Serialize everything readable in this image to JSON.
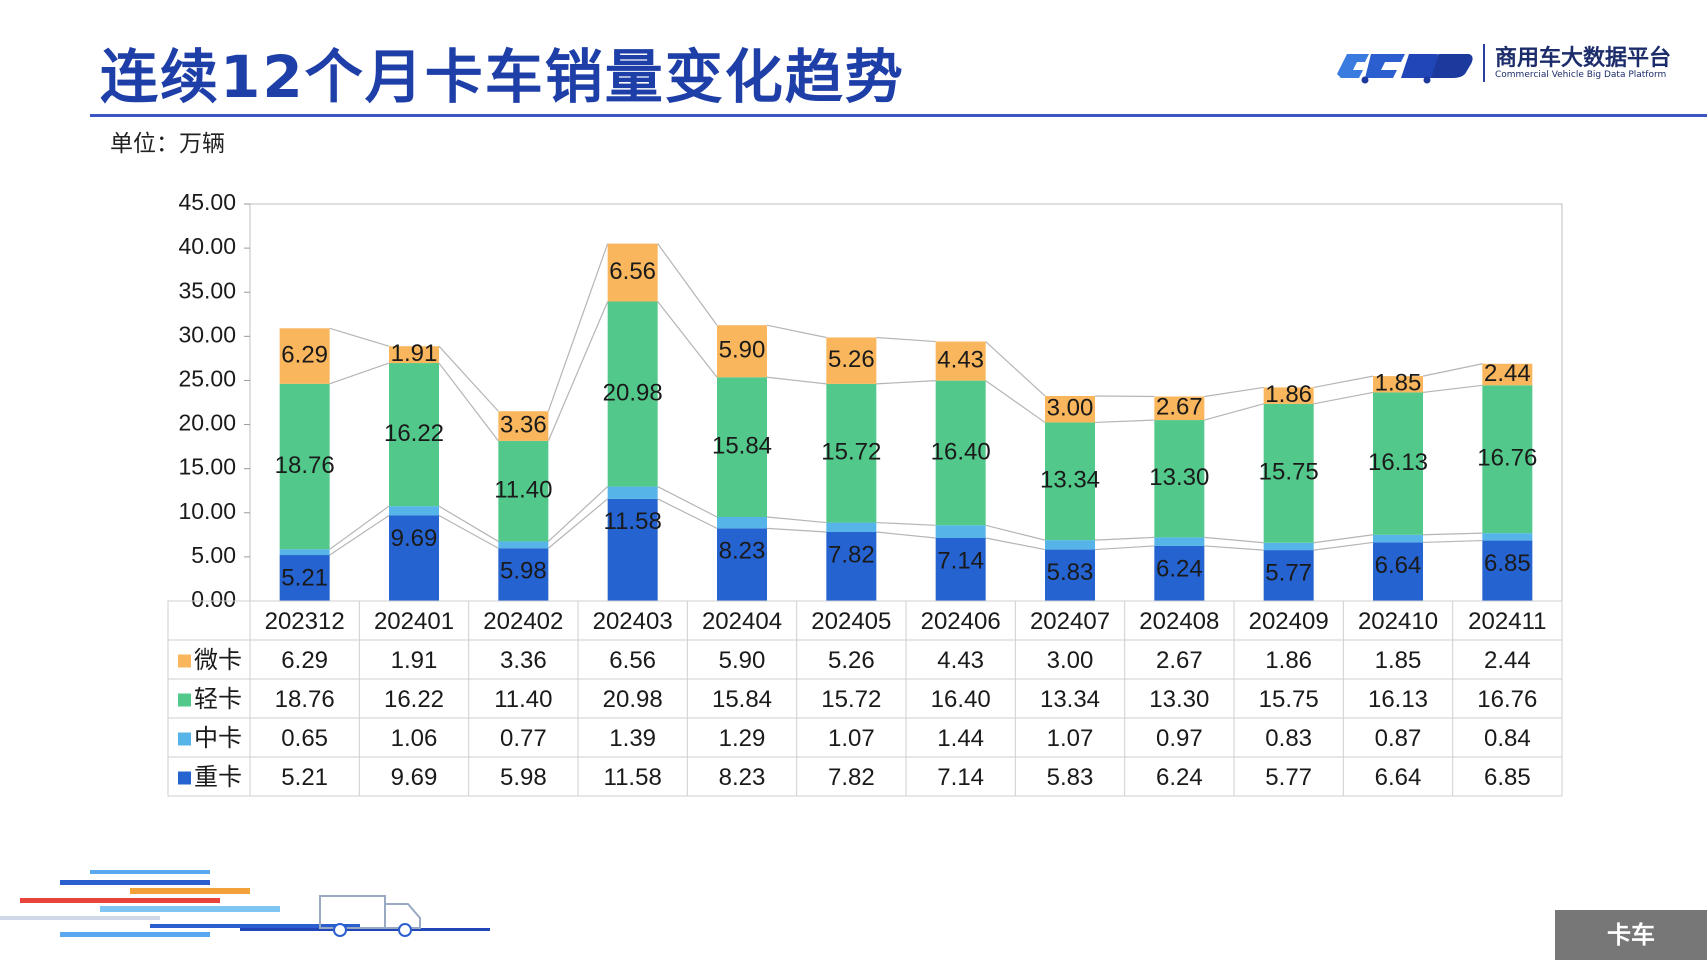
{
  "header": {
    "title": "连续12个月卡车销量变化趋势",
    "unit": "单位：万辆"
  },
  "logo": {
    "name_cn": "商用车大数据平台",
    "name_en": "Commercial Vehicle Big Data Platform"
  },
  "footer": {
    "tag": "卡车"
  },
  "colors": {
    "title": "#1f3fa8",
    "heavy": "#2563d1",
    "medium": "#56b4e8",
    "light": "#52c98b",
    "micro": "#f9b65c",
    "footer_tag": "#777777"
  },
  "chart_data": {
    "type": "bar",
    "stacked": true,
    "categories": [
      "202312",
      "202401",
      "202402",
      "202403",
      "202404",
      "202405",
      "202406",
      "202407",
      "202408",
      "202409",
      "202410",
      "202411"
    ],
    "series": [
      {
        "name": "重卡",
        "color": "#2563d1",
        "values": [
          5.21,
          9.69,
          5.98,
          11.58,
          8.23,
          7.82,
          7.14,
          5.83,
          6.24,
          5.77,
          6.64,
          6.85
        ]
      },
      {
        "name": "中卡",
        "color": "#56b4e8",
        "values": [
          0.65,
          1.06,
          0.77,
          1.39,
          1.29,
          1.07,
          1.44,
          1.07,
          0.97,
          0.83,
          0.87,
          0.84
        ]
      },
      {
        "name": "轻卡",
        "color": "#52c98b",
        "values": [
          18.76,
          16.22,
          11.4,
          20.98,
          15.84,
          15.72,
          16.4,
          13.34,
          13.3,
          15.75,
          16.13,
          16.76
        ]
      },
      {
        "name": "微卡",
        "color": "#f9b65c",
        "values": [
          6.29,
          1.91,
          3.36,
          6.56,
          5.9,
          5.26,
          4.43,
          3.0,
          2.67,
          1.86,
          1.85,
          2.44
        ]
      }
    ],
    "table_rows": [
      {
        "name": "微卡",
        "values": [
          "6.29",
          "1.91",
          "3.36",
          "6.56",
          "5.90",
          "5.26",
          "4.43",
          "3.00",
          "2.67",
          "1.86",
          "1.85",
          "2.44"
        ]
      },
      {
        "name": "轻卡",
        "values": [
          "18.76",
          "16.22",
          "11.40",
          "20.98",
          "15.84",
          "15.72",
          "16.40",
          "13.34",
          "13.30",
          "15.75",
          "16.13",
          "16.76"
        ]
      },
      {
        "name": "中卡",
        "values": [
          "0.65",
          "1.06",
          "0.77",
          "1.39",
          "1.29",
          "1.07",
          "1.44",
          "1.07",
          "0.97",
          "0.83",
          "0.87",
          "0.84"
        ]
      },
      {
        "name": "重卡",
        "values": [
          "5.21",
          "9.69",
          "5.98",
          "11.58",
          "8.23",
          "7.82",
          "7.14",
          "5.83",
          "6.24",
          "5.77",
          "6.64",
          "6.85"
        ]
      }
    ],
    "bar_labels": {
      "重卡": [
        "5.21",
        "9.69",
        "5.98",
        "11.58",
        "8.23",
        "7.82",
        "7.14",
        "5.83",
        "6.24",
        "5.77",
        "6.64",
        "6.85"
      ],
      "轻卡": [
        "18.76",
        "16.22",
        "11.40",
        "20.98",
        "15.84",
        "15.72",
        "16.40",
        "13.34",
        "13.30",
        "15.75",
        "16.13",
        "16.76"
      ],
      "微卡": [
        "6.29",
        "1.91",
        "3.36",
        "6.56",
        "5.90",
        "5.26",
        "4.43",
        "3.00",
        "2.67",
        "1.86",
        "1.85",
        "2.44"
      ]
    },
    "yticks": [
      "0.00",
      "5.00",
      "10.00",
      "15.00",
      "20.00",
      "25.00",
      "30.00",
      "35.00",
      "40.00",
      "45.00"
    ],
    "ylim": [
      0,
      45
    ],
    "grid": false,
    "series_lines": true,
    "legend": "data-table"
  }
}
